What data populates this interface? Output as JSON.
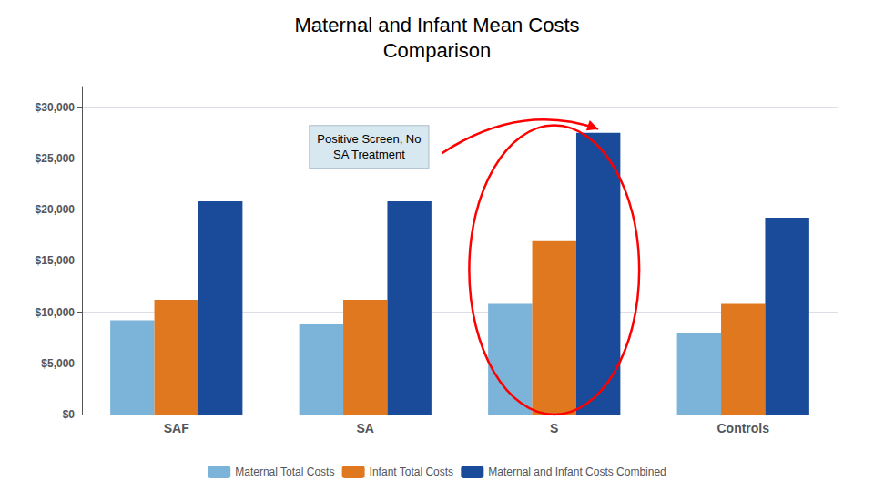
{
  "chart_data": {
    "type": "bar",
    "title": "Maternal and Infant Mean Costs\nComparison",
    "subtitle": "Positive Screen, No\nSA Treatment",
    "categories": [
      "SAF",
      "SA",
      "S",
      "Controls"
    ],
    "series": [
      {
        "name": "Maternal Total Costs",
        "color": "#7BB3D9",
        "values": [
          9200,
          8800,
          10800,
          8000
        ]
      },
      {
        "name": "Infant Total Costs",
        "color": "#E07820",
        "values": [
          11200,
          11200,
          17000,
          10800
        ]
      },
      {
        "name": "Maternal and Infant Costs Combined",
        "color": "#1A4A9A",
        "values": [
          20800,
          20800,
          27500,
          19200
        ]
      }
    ],
    "ylim": [
      0,
      32000
    ],
    "yticks": [
      {
        "value": 0,
        "label": "$0"
      },
      {
        "value": 5000,
        "label": "$5,000"
      },
      {
        "value": 10000,
        "label": "$10,000"
      },
      {
        "value": 15000,
        "label": "$15,000"
      },
      {
        "value": 20000,
        "label": "$20,000"
      },
      {
        "value": 25000,
        "label": "$25,000"
      },
      {
        "value": 30000,
        "label": "$30,000"
      }
    ],
    "grid": true,
    "legend": "bottom"
  }
}
